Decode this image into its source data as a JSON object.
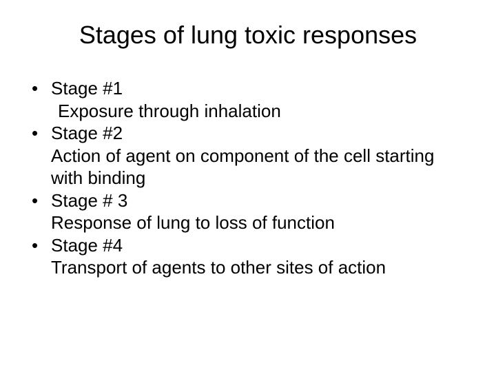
{
  "title": "Stages of lung toxic responses",
  "bullets": [
    {
      "label": "Stage #1",
      "detail": "Exposure through inhalation"
    },
    {
      "label": "Stage #2",
      "detail": "Action of agent on component of the cell starting with binding"
    },
    {
      "label": "Stage # 3",
      "detail": "Response of lung to loss of function"
    },
    {
      "label": "Stage #4",
      "detail": "Transport of agents to other sites of action"
    }
  ],
  "style": {
    "background_color": "#ffffff",
    "text_color": "#000000",
    "title_fontsize": 36,
    "body_fontsize": 26,
    "font_family": "Arial"
  }
}
